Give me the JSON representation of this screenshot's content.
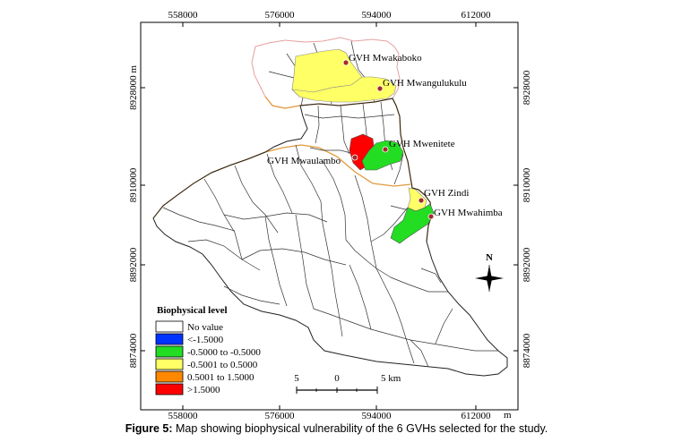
{
  "map": {
    "grid": {
      "top_labels": [
        "558000",
        "576000",
        "594000",
        "612000"
      ],
      "bottom_labels": [
        "558000",
        "576000",
        "594000",
        "612000"
      ],
      "bottom_unit": "m",
      "left_labels": [
        "8928000 m",
        "8910000",
        "8892000",
        "8874000"
      ],
      "right_labels": [
        "8928000",
        "8910000",
        "8892000",
        "8874000"
      ]
    },
    "villages": [
      {
        "name": "GVH Mwakaboko",
        "biophysical_level": "-0.5001 to 0.5000",
        "color": "#ffff66"
      },
      {
        "name": "GVH Mwangulukulu",
        "biophysical_level": "-0.5001 to 0.5000",
        "color": "#ffff66"
      },
      {
        "name": "GVH Mwenitete",
        "biophysical_level": "-0.5000 to -0.5000",
        "color": "#22dd22"
      },
      {
        "name": "GVH Mwaulambo",
        "biophysical_level": ">1.5000",
        "color": "#ff0000"
      },
      {
        "name": "GVH Zindi",
        "biophysical_level": "-0.5001 to 0.5000",
        "color": "#ffff66"
      },
      {
        "name": "GVH Mwahimba",
        "biophysical_level": "-0.5000 to -0.5000",
        "color": "#22dd22"
      }
    ],
    "legend": {
      "title": "Biophysical level",
      "items": [
        {
          "label": "No value",
          "color": "#ffffff"
        },
        {
          "label": "<-1.5000",
          "color": "#0033ff"
        },
        {
          "label": "-0.5000 to -0.5000",
          "color": "#22dd22"
        },
        {
          "label": "-0.5001 to 0.5000",
          "color": "#ffff66"
        },
        {
          "label": "0.5001 to 1.5000",
          "color": "#ff8800"
        },
        {
          "label": ">1.5000",
          "color": "#ff0000"
        }
      ]
    },
    "scale_bar": {
      "labels": [
        "5",
        "0",
        "5 km"
      ]
    },
    "north_arrow": {
      "label": "N"
    }
  },
  "caption": {
    "prefix": "Figure 5:",
    "text": " Map showing biophysical vulnerability of the 6 GVHs selected for the study."
  }
}
